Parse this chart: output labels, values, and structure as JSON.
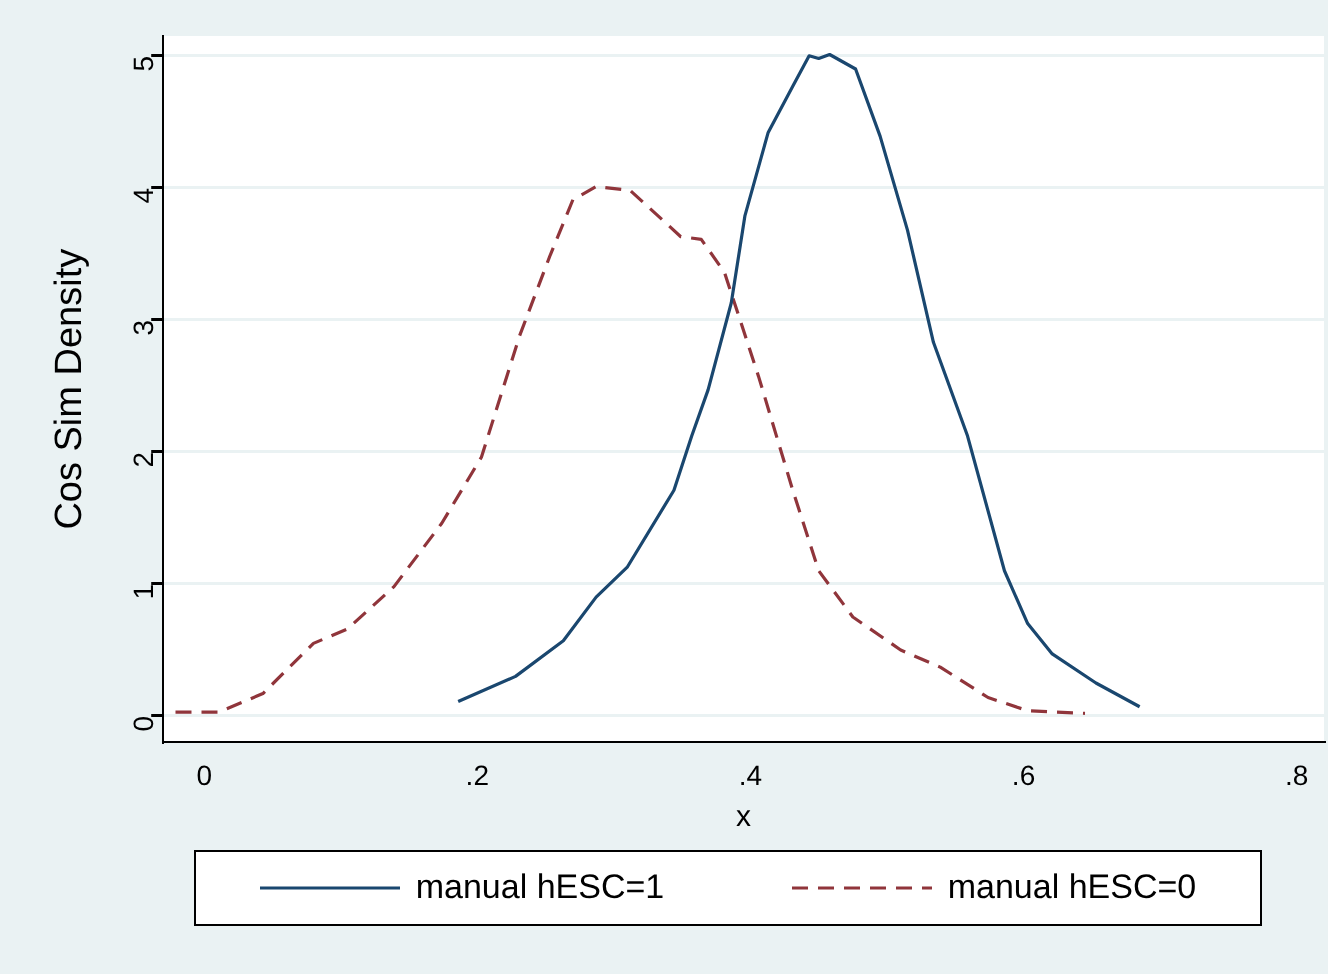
{
  "chart_data": {
    "type": "line",
    "xlabel": "x",
    "ylabel": "Cos Sim Density",
    "xlim": [
      -0.03,
      0.82
    ],
    "ylim": [
      -0.2,
      5.15
    ],
    "xticks": [
      {
        "value": 0,
        "label": "0"
      },
      {
        "value": 0.2,
        "label": ".2"
      },
      {
        "value": 0.4,
        "label": ".4"
      },
      {
        "value": 0.6,
        "label": ".6"
      },
      {
        "value": 0.8,
        "label": ".8"
      }
    ],
    "yticks": [
      0,
      1,
      2,
      3,
      4,
      5
    ],
    "grid": "y",
    "legend": "bottom",
    "marker": "none",
    "series": [
      {
        "name": "manual hESC=1",
        "color": "#1a476f",
        "line_style": "solid",
        "x": [
          0.186,
          0.228,
          0.263,
          0.287,
          0.31,
          0.344,
          0.357,
          0.369,
          0.386,
          0.396,
          0.413,
          0.431,
          0.443,
          0.45,
          0.458,
          0.477,
          0.495,
          0.515,
          0.534,
          0.559,
          0.586,
          0.603,
          0.621,
          0.653,
          0.685
        ],
        "values": [
          0.11,
          0.3,
          0.57,
          0.9,
          1.13,
          1.71,
          2.12,
          2.47,
          3.13,
          3.79,
          4.42,
          4.77,
          5.0,
          4.98,
          5.01,
          4.9,
          4.39,
          3.68,
          2.83,
          2.12,
          1.1,
          0.7,
          0.47,
          0.25,
          0.07
        ]
      },
      {
        "name": "manual hESC=0",
        "color": "#90353b",
        "line_style": "dashed",
        "x": [
          -0.021,
          0.011,
          0.043,
          0.08,
          0.105,
          0.139,
          0.174,
          0.203,
          0.231,
          0.253,
          0.27,
          0.287,
          0.312,
          0.349,
          0.364,
          0.381,
          0.406,
          0.431,
          0.45,
          0.475,
          0.51,
          0.539,
          0.574,
          0.603,
          0.645
        ],
        "values": [
          0.03,
          0.03,
          0.17,
          0.55,
          0.66,
          0.98,
          1.46,
          1.96,
          2.88,
          3.48,
          3.91,
          4.01,
          3.98,
          3.63,
          3.61,
          3.36,
          2.57,
          1.71,
          1.1,
          0.75,
          0.5,
          0.37,
          0.14,
          0.04,
          0.02
        ]
      }
    ]
  }
}
